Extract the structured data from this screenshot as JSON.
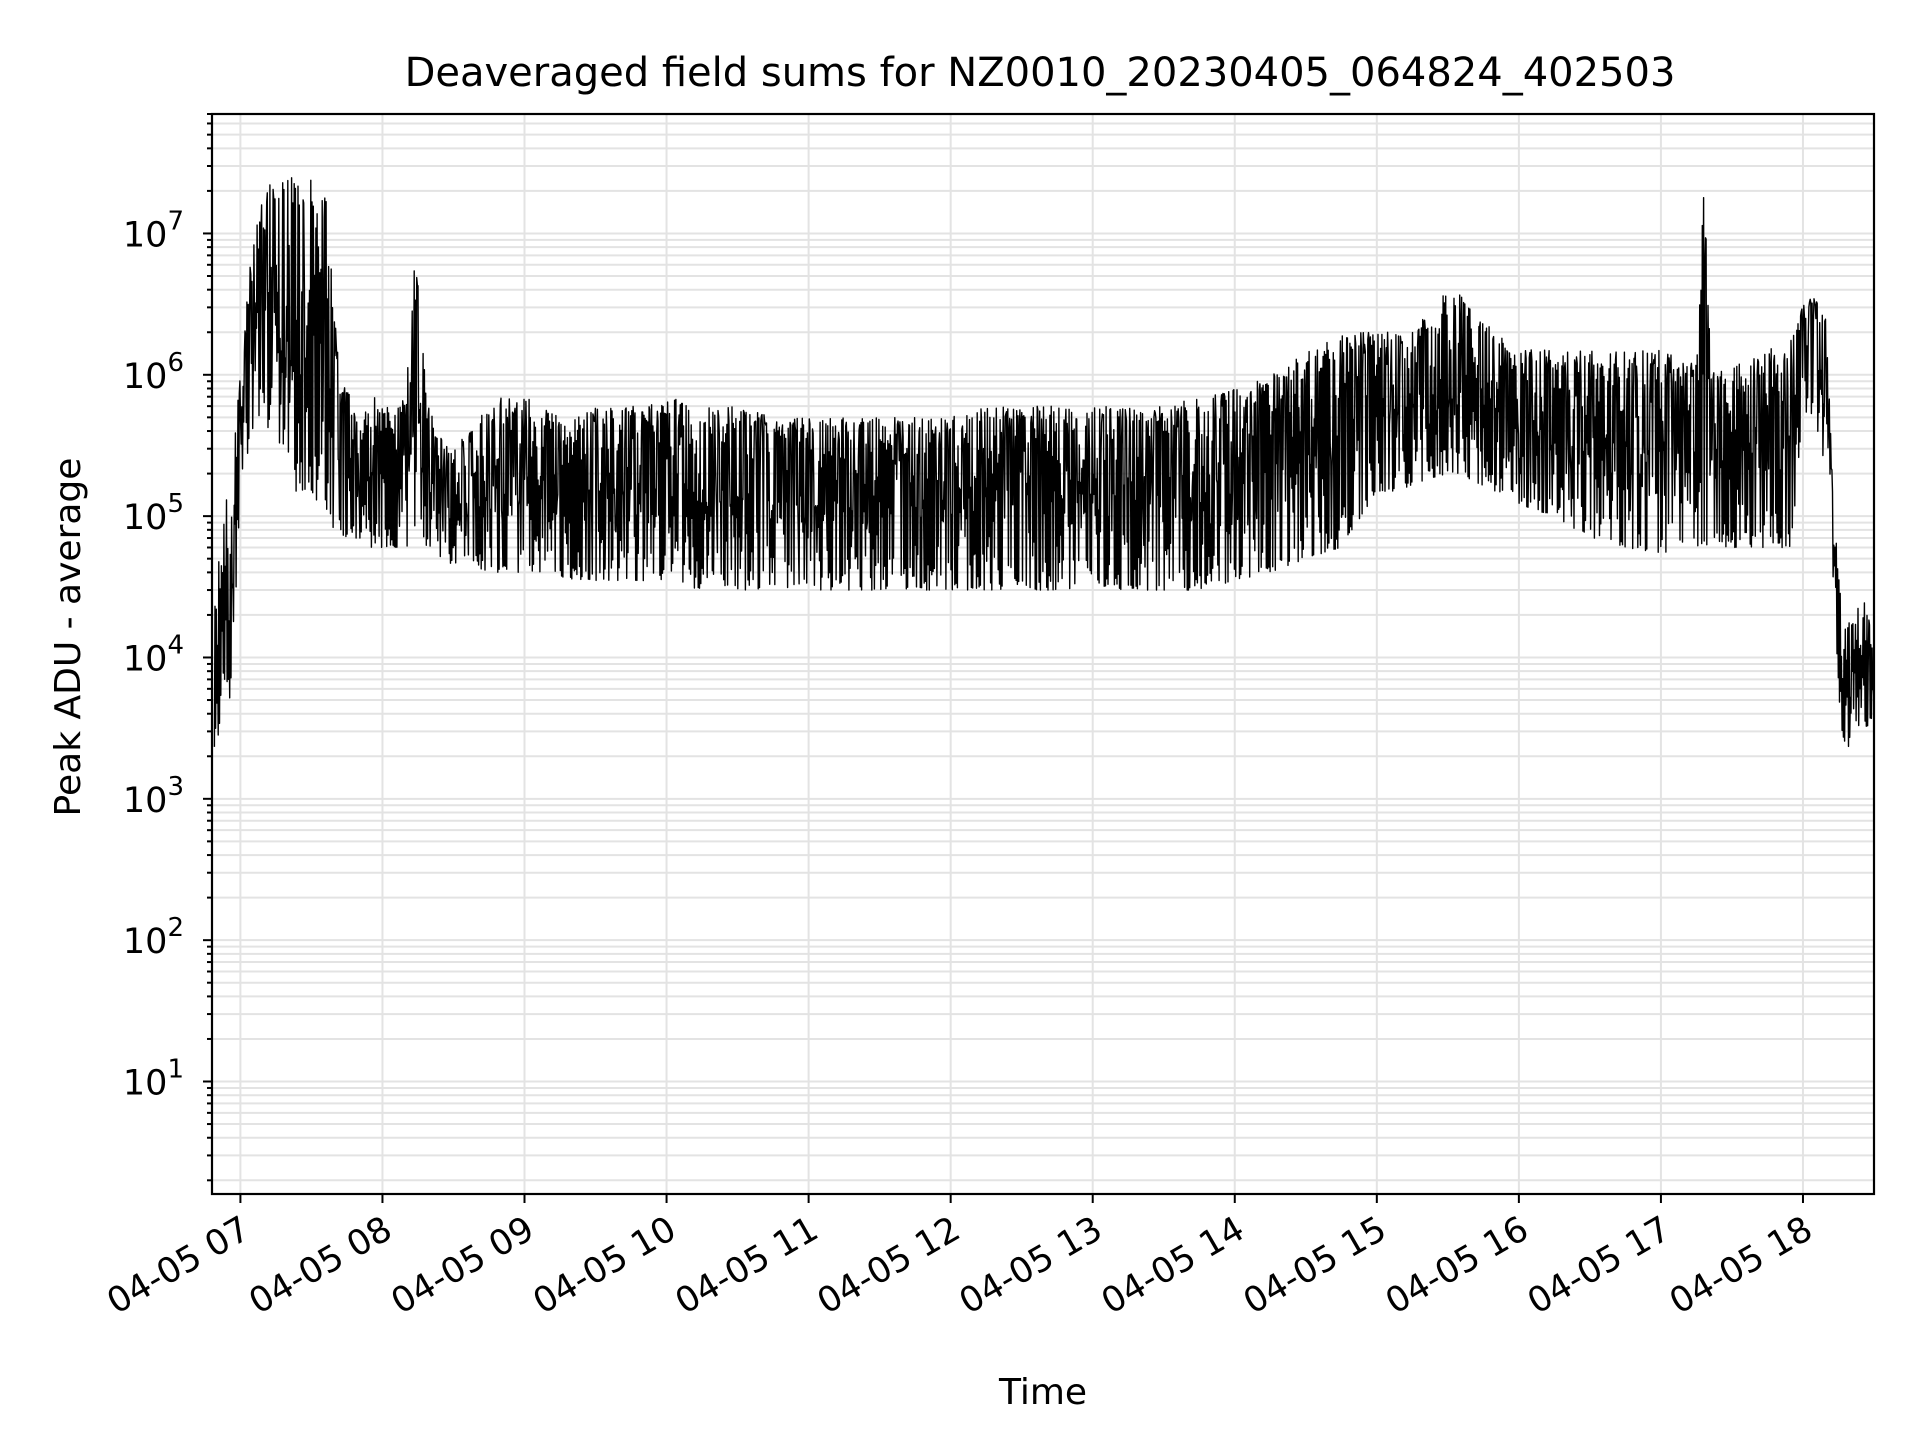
{
  "chart_data": {
    "type": "line",
    "title": "Deaveraged field sums for NZ0010_20230405_064824_402503",
    "xlabel": "Time",
    "ylabel": "Peak ADU - average",
    "yscale": "log",
    "xlim": [
      "2023-04-05 06:48",
      "2023-04-05 18:30"
    ],
    "ylim": [
      1.6,
      70000000
    ],
    "grid": true,
    "x_tick_labels": [
      "04-05 07",
      "04-05 08",
      "04-05 09",
      "04-05 10",
      "04-05 11",
      "04-05 12",
      "04-05 13",
      "04-05 14",
      "04-05 15",
      "04-05 16",
      "04-05 17",
      "04-05 18"
    ],
    "x_tick_values": [
      "2023-04-05 07:00",
      "2023-04-05 08:00",
      "2023-04-05 09:00",
      "2023-04-05 10:00",
      "2023-04-05 11:00",
      "2023-04-05 12:00",
      "2023-04-05 13:00",
      "2023-04-05 14:00",
      "2023-04-05 15:00",
      "2023-04-05 16:00",
      "2023-04-05 17:00",
      "2023-04-05 18:00"
    ],
    "y_tick_labels": [
      {
        "base": "10",
        "exp": "1",
        "value": 10
      },
      {
        "base": "10",
        "exp": "2",
        "value": 100
      },
      {
        "base": "10",
        "exp": "3",
        "value": 1000
      },
      {
        "base": "10",
        "exp": "4",
        "value": 10000
      },
      {
        "base": "10",
        "exp": "5",
        "value": 100000
      },
      {
        "base": "10",
        "exp": "6",
        "value": 1000000
      },
      {
        "base": "10",
        "exp": "7",
        "value": 10000000
      }
    ],
    "series": [
      {
        "color": "#000000",
        "x": [
          "06:49",
          "06:52",
          "06:56",
          "07:00",
          "07:05",
          "07:10",
          "07:15",
          "07:20",
          "07:25",
          "07:30",
          "07:36",
          "07:42",
          "07:46",
          "07:50",
          "07:55",
          "08:00",
          "08:05",
          "08:10",
          "08:14",
          "08:18",
          "08:22",
          "08:30",
          "08:40",
          "08:50",
          "09:00",
          "09:10",
          "09:20",
          "09:30",
          "09:45",
          "10:00",
          "10:15",
          "10:30",
          "10:45",
          "11:00",
          "11:15",
          "11:30",
          "11:45",
          "12:00",
          "12:15",
          "12:30",
          "12:45",
          "13:00",
          "13:15",
          "13:30",
          "13:45",
          "14:00",
          "14:15",
          "14:30",
          "14:45",
          "15:00",
          "15:10",
          "15:20",
          "15:30",
          "15:35",
          "15:40",
          "15:50",
          "16:00",
          "16:15",
          "16:30",
          "16:45",
          "17:00",
          "17:15",
          "17:18",
          "17:21",
          "17:30",
          "17:45",
          "17:55",
          "18:00",
          "18:05",
          "18:10",
          "18:13",
          "18:16",
          "18:19",
          "18:22",
          "18:25",
          "18:28",
          "18:30"
        ],
        "low": [
          1200,
          5000,
          5000,
          150000,
          400000,
          500000,
          300000,
          150000,
          150000,
          150000,
          100000,
          70000,
          70000,
          70000,
          60000,
          60000,
          60000,
          60000,
          70000,
          60000,
          55000,
          45000,
          40000,
          40000,
          40000,
          40000,
          35000,
          35000,
          35000,
          35000,
          30000,
          30000,
          30000,
          30000,
          30000,
          30000,
          30000,
          30000,
          30000,
          30000,
          30000,
          30000,
          30000,
          30000,
          30000,
          35000,
          40000,
          50000,
          60000,
          150000,
          150000,
          180000,
          200000,
          200000,
          180000,
          150000,
          120000,
          100000,
          70000,
          60000,
          55000,
          60000,
          60000,
          60000,
          60000,
          60000,
          60000,
          500000,
          500000,
          200000,
          30000,
          3000,
          2200,
          3000,
          3000,
          3000,
          4000
        ],
        "high": [
          20000,
          100000,
          200000,
          1000000,
          10000000,
          20000000,
          25000000,
          25000000,
          25000000,
          25000000,
          20000000,
          900000,
          800000,
          400000,
          700000,
          700000,
          600000,
          800000,
          8000000,
          1000000,
          400000,
          300000,
          500000,
          700000,
          700000,
          600000,
          500000,
          600000,
          600000,
          700000,
          600000,
          600000,
          500000,
          500000,
          500000,
          500000,
          500000,
          500000,
          600000,
          600000,
          600000,
          600000,
          600000,
          600000,
          700000,
          800000,
          1000000,
          1500000,
          2000000,
          2000000,
          2000000,
          2500000,
          4000000,
          4000000,
          3000000,
          2000000,
          1500000,
          1500000,
          1500000,
          1500000,
          1500000,
          1200000,
          30000000,
          1200000,
          1200000,
          1500000,
          1800000,
          3500000,
          3500000,
          2500000,
          100000,
          30000,
          20000,
          20000,
          30000,
          20000,
          10000
        ]
      }
    ]
  }
}
